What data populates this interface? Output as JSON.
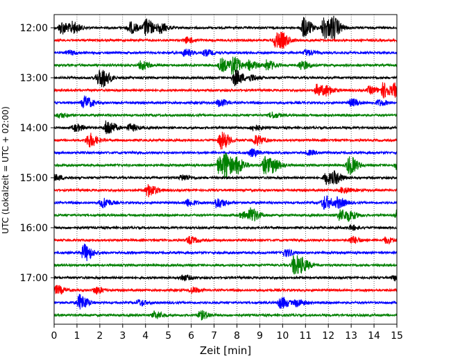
{
  "chart_data": {
    "type": "line",
    "title": "",
    "xlabel": "Zeit  [min]",
    "ylabel": "UTC (Lokalzeit = UTC + 02:00)",
    "xlim": [
      0,
      15
    ],
    "x_ticks": [
      "0",
      "1",
      "2",
      "3",
      "4",
      "5",
      "6",
      "7",
      "8",
      "9",
      "10",
      "11",
      "12",
      "13",
      "14",
      "15"
    ],
    "y_ticks": [
      {
        "label": "12:00",
        "trace": 0
      },
      {
        "label": "13:00",
        "trace": 4
      },
      {
        "label": "14:00",
        "trace": 8
      },
      {
        "label": "15:00",
        "trace": 12
      },
      {
        "label": "16:00",
        "trace": 16
      },
      {
        "label": "17:00",
        "trace": 20
      }
    ],
    "grid": "vertical dotted",
    "trace_interval_minutes": 15,
    "trace_count": 24,
    "trace_colors": [
      "#000000",
      "#ff0000",
      "#0000ff",
      "#008000"
    ],
    "events": [
      [
        [
          0.3,
          9
        ],
        [
          0.8,
          7
        ],
        [
          3.3,
          8
        ],
        [
          4.0,
          12
        ],
        [
          4.6,
          7
        ],
        [
          10.9,
          14
        ],
        [
          11.8,
          16
        ],
        [
          12.2,
          12
        ]
      ],
      [
        [
          5.8,
          4
        ],
        [
          9.7,
          11
        ],
        [
          10.0,
          5
        ]
      ],
      [
        [
          0.6,
          3
        ],
        [
          5.7,
          5
        ],
        [
          6.6,
          4
        ],
        [
          11.0,
          4
        ]
      ],
      [
        [
          3.8,
          6
        ],
        [
          7.3,
          9
        ],
        [
          7.8,
          12
        ],
        [
          8.5,
          7
        ],
        [
          9.3,
          7
        ],
        [
          10.8,
          6
        ]
      ],
      [
        [
          1.9,
          8
        ],
        [
          2.1,
          9
        ],
        [
          7.9,
          11
        ],
        [
          8.6,
          4
        ]
      ],
      [
        [
          11.5,
          8
        ],
        [
          11.9,
          5
        ],
        [
          13.8,
          5
        ],
        [
          14.4,
          10
        ],
        [
          14.9,
          8
        ]
      ],
      [
        [
          1.3,
          9
        ],
        [
          7.2,
          5
        ],
        [
          13.0,
          5
        ],
        [
          14.2,
          4
        ]
      ],
      [
        [
          0.2,
          3
        ],
        [
          9.5,
          4
        ]
      ],
      [
        [
          0.9,
          5
        ],
        [
          2.3,
          11
        ],
        [
          3.3,
          5
        ],
        [
          8.7,
          4
        ]
      ],
      [
        [
          1.5,
          10
        ],
        [
          7.3,
          12
        ],
        [
          8.8,
          7
        ]
      ],
      [
        [
          8.6,
          5
        ],
        [
          11.1,
          3
        ]
      ],
      [
        [
          7.2,
          12
        ],
        [
          7.5,
          14
        ],
        [
          8.0,
          10
        ],
        [
          9.2,
          12
        ],
        [
          9.6,
          7
        ],
        [
          12.9,
          13
        ],
        [
          15.0,
          6
        ]
      ],
      [
        [
          0.0,
          4
        ],
        [
          5.6,
          4
        ],
        [
          11.9,
          9
        ],
        [
          12.3,
          6
        ]
      ],
      [
        [
          4.1,
          9
        ],
        [
          12.6,
          4
        ]
      ],
      [
        [
          2.1,
          7
        ],
        [
          5.8,
          5
        ],
        [
          7.1,
          7
        ],
        [
          11.8,
          10
        ],
        [
          12.4,
          7
        ]
      ],
      [
        [
          8.6,
          9
        ],
        [
          8.2,
          4
        ],
        [
          12.5,
          8
        ],
        [
          12.9,
          5
        ],
        [
          15.0,
          7
        ]
      ],
      [
        [
          13.0,
          3
        ]
      ],
      [
        [
          5.9,
          5
        ],
        [
          13.0,
          5
        ],
        [
          14.5,
          4
        ]
      ],
      [
        [
          1.3,
          12
        ],
        [
          10.1,
          5
        ]
      ],
      [
        [
          10.5,
          15
        ],
        [
          10.9,
          5
        ]
      ],
      [
        [
          5.6,
          4
        ],
        [
          14.9,
          5
        ]
      ],
      [
        [
          0.1,
          6
        ],
        [
          1.8,
          5
        ],
        [
          6.0,
          4
        ]
      ],
      [
        [
          1.1,
          11
        ],
        [
          3.7,
          4
        ],
        [
          9.9,
          8
        ],
        [
          10.6,
          5
        ]
      ],
      [
        [
          4.4,
          5
        ],
        [
          6.4,
          6
        ]
      ]
    ]
  }
}
